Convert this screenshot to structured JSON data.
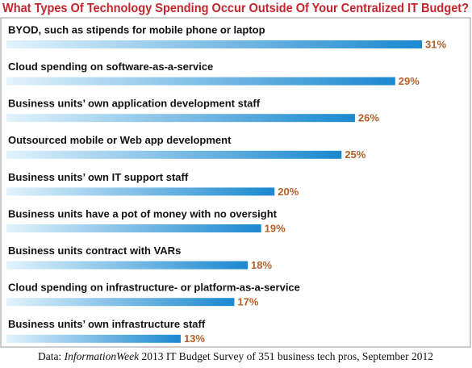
{
  "chart_data": {
    "type": "bar",
    "orientation": "horizontal",
    "title": "What Types Of Technology Spending Occur Outside Of Your Centralized IT Budget?",
    "categories": [
      "BYOD, such as stipends for mobile phone or laptop",
      "Cloud spending on software-as-a-service",
      "Business units’ own application development staff",
      "Outsourced mobile or Web app development",
      "Business units’ own IT support staff",
      "Business units have a pot of money with no oversight",
      "Business units contract with VARs",
      "Cloud spending on infrastructure- or platform-as-a-service",
      "Business units’ own infrastructure staff"
    ],
    "values": [
      31,
      29,
      26,
      25,
      20,
      19,
      18,
      17,
      13
    ],
    "value_labels": [
      "31%",
      "29%",
      "26%",
      "25%",
      "20%",
      "19%",
      "18%",
      "17%",
      "13%"
    ],
    "color": "#1a88cf",
    "source_prefix": "Data:",
    "source_publication": "InformationWeek",
    "source_rest": "2013 IT Budget Survey of 351 business tech pros, September 2012"
  }
}
